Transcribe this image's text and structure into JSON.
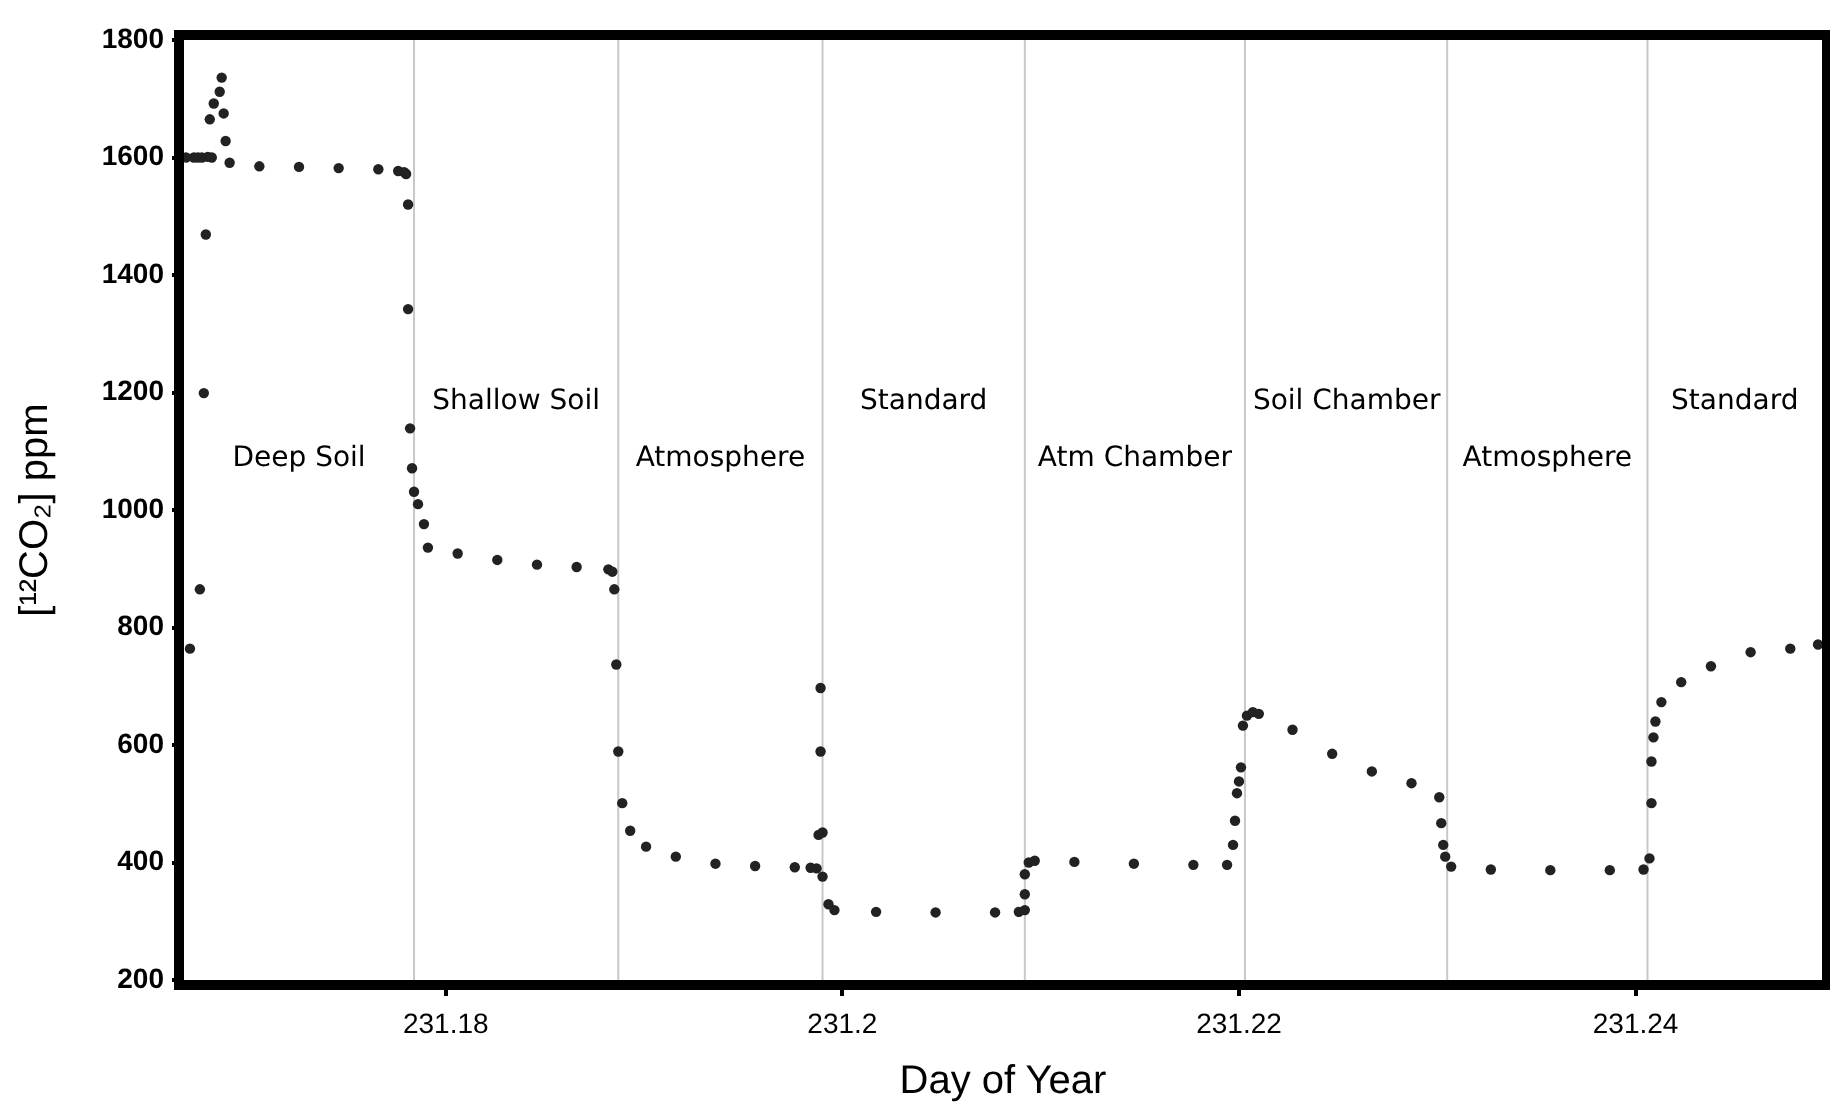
{
  "chart_data": {
    "type": "scatter",
    "xlabel": "Day of Year",
    "ylabel": "[¹²CO₂] ppm",
    "color": "#222222",
    "marker": "circle",
    "grid": false,
    "legend": false,
    "xlim": [
      231.1668,
      231.2494
    ],
    "xticks": [
      231.18,
      231.2,
      231.22,
      231.24
    ],
    "ylim": [
      200,
      1800
    ],
    "yticks": [
      200,
      400,
      600,
      800,
      1000,
      1200,
      1400,
      1600,
      1800
    ],
    "x": [
      231.1669,
      231.1671,
      231.1673,
      231.1675,
      231.1676,
      231.1677,
      231.1678,
      231.1679,
      231.168,
      231.1681,
      231.1682,
      231.1683,
      231.1686,
      231.1687,
      231.1688,
      231.1689,
      231.1691,
      231.1706,
      231.1726,
      231.1746,
      231.1766,
      231.1776,
      231.1779,
      231.178,
      231.1781,
      231.1781,
      231.1782,
      231.1783,
      231.1784,
      231.1786,
      231.1789,
      231.1791,
      231.1806,
      231.1826,
      231.1846,
      231.1866,
      231.1882,
      231.1884,
      231.1885,
      231.1886,
      231.1887,
      231.1889,
      231.1893,
      231.1901,
      231.1916,
      231.1936,
      231.1956,
      231.1976,
      231.1984,
      231.1987,
      231.1988,
      231.1989,
      231.1989,
      231.199,
      231.199,
      231.1993,
      231.1996,
      231.2017,
      231.2047,
      231.2077,
      231.2089,
      231.2092,
      231.2092,
      231.2092,
      231.2094,
      231.2097,
      231.2117,
      231.2147,
      231.2177,
      231.2194,
      231.2197,
      231.2198,
      231.2199,
      231.22,
      231.2201,
      231.2202,
      231.2204,
      231.2207,
      231.221,
      231.2227,
      231.2247,
      231.2267,
      231.2287,
      231.2301,
      231.2302,
      231.2303,
      231.2304,
      231.2307,
      231.2327,
      231.2357,
      231.2387,
      231.2404,
      231.2407,
      231.2408,
      231.2408,
      231.2409,
      231.241,
      231.2413,
      231.2423,
      231.2438,
      231.2458,
      231.2478,
      231.2492
    ],
    "values": [
      1600,
      764,
      1600,
      1600,
      865,
      1600,
      1199,
      1469,
      1601,
      1665,
      1600,
      1692,
      1712,
      1736,
      1675,
      1628,
      1591,
      1585,
      1584,
      1582,
      1580,
      1577,
      1575,
      1572,
      1520,
      1342,
      1139,
      1071,
      1031,
      1010,
      976,
      936,
      926,
      915,
      907,
      903,
      899,
      895,
      865,
      737,
      589,
      501,
      454,
      427,
      410,
      398,
      394,
      392,
      391,
      390,
      447,
      589,
      697,
      451,
      376,
      329,
      319,
      316,
      315,
      315,
      316,
      319,
      346,
      380,
      400,
      403,
      401,
      398,
      396,
      396,
      430,
      471,
      518,
      538,
      562,
      633,
      650,
      656,
      653,
      626,
      585,
      555,
      535,
      511,
      467,
      430,
      410,
      393,
      388,
      387,
      387,
      388,
      407,
      501,
      572,
      613,
      640,
      673,
      707,
      734,
      758,
      764,
      771
    ],
    "ref_lines": [
      {
        "axis": "x",
        "value": 231.1784,
        "color": "#c8c8c8"
      },
      {
        "axis": "x",
        "value": 231.1887,
        "color": "#c8c8c8"
      },
      {
        "axis": "x",
        "value": 231.199,
        "color": "#c8c8c8"
      },
      {
        "axis": "x",
        "value": 231.2092,
        "color": "#c8c8c8"
      },
      {
        "axis": "x",
        "value": 231.2203,
        "color": "#c8c8c8"
      },
      {
        "axis": "x",
        "value": 231.2305,
        "color": "#c8c8c8"
      },
      {
        "axis": "x",
        "value": 231.2406,
        "color": "#c8c8c8"
      }
    ],
    "annotations": [
      "Deep Soil",
      "Shallow Soil",
      "Atmosphere",
      "Standard",
      "Atm Chamber",
      "Soil Chamber",
      "Atmosphere",
      "Standard"
    ]
  }
}
